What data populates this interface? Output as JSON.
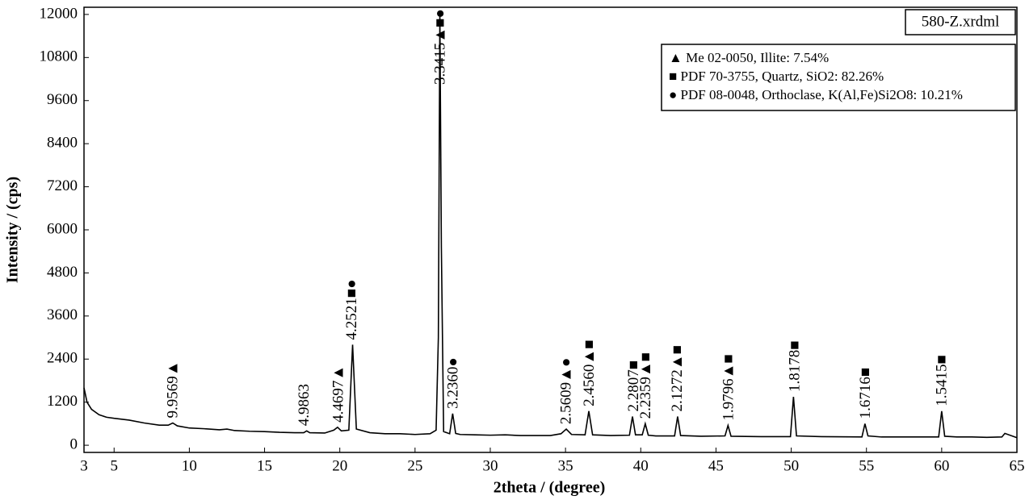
{
  "chart_data": {
    "type": "line",
    "file_label": "580-Z.xrdml",
    "x_label": "2theta / (degree)",
    "y_label": "Intensity / (cps)",
    "xlim": [
      3,
      65
    ],
    "xticks": [
      3,
      5,
      10,
      15,
      20,
      25,
      30,
      35,
      40,
      45,
      50,
      55,
      60,
      65
    ],
    "ylim": [
      -200,
      12200
    ],
    "yticks": [
      0,
      1200,
      2400,
      3600,
      4800,
      6000,
      7200,
      8400,
      9600,
      10800,
      12000
    ],
    "legend": [
      "▲ Me 02-0050, Illite: 7.54%",
      "■ PDF 70-3755, Quartz, SiO2: 82.26%",
      "● PDF 08-0048, Orthoclase, K(Al,Fe)Si2O8: 10.21%"
    ],
    "series": [
      {
        "color": "#000000",
        "x": [
          3,
          3.2,
          3.5,
          4,
          4.5,
          5,
          6,
          7,
          8,
          8.6,
          8.9,
          9.2,
          10,
          11,
          12,
          12.5,
          13,
          14,
          15,
          16,
          17,
          17.6,
          17.8,
          18,
          19,
          19.6,
          19.85,
          20.1,
          20.6,
          20.85,
          21.1,
          22,
          23,
          24,
          25,
          26,
          26.4,
          26.55,
          26.65,
          26.75,
          26.9,
          27.3,
          27.5,
          27.7,
          28,
          29,
          30,
          31,
          32,
          33,
          34,
          34.7,
          35.05,
          35.4,
          36.3,
          36.55,
          36.8,
          38,
          39.25,
          39.45,
          39.65,
          40.1,
          40.3,
          40.5,
          41,
          42.25,
          42.45,
          42.65,
          44,
          45.6,
          45.8,
          46,
          48,
          49.95,
          50.15,
          50.35,
          52,
          54.7,
          54.9,
          55.1,
          56,
          58,
          59.8,
          60,
          60.2,
          61,
          62,
          63,
          64,
          64.2,
          65
        ],
        "values": [
          1600,
          1200,
          1000,
          850,
          780,
          750,
          700,
          620,
          560,
          560,
          620,
          540,
          480,
          460,
          430,
          450,
          410,
          390,
          380,
          360,
          350,
          350,
          400,
          350,
          340,
          420,
          500,
          400,
          420,
          2800,
          450,
          350,
          320,
          320,
          300,
          320,
          420,
          3000,
          12000,
          5500,
          380,
          320,
          880,
          330,
          300,
          290,
          280,
          290,
          270,
          270,
          270,
          320,
          450,
          300,
          290,
          950,
          290,
          270,
          280,
          800,
          290,
          290,
          600,
          280,
          260,
          260,
          800,
          270,
          250,
          260,
          550,
          250,
          240,
          240,
          1350,
          260,
          240,
          230,
          600,
          260,
          230,
          230,
          230,
          950,
          250,
          230,
          230,
          220,
          230,
          330,
          210
        ]
      }
    ],
    "annotations": [
      {
        "x": 8.96,
        "text": "9.9569▲"
      },
      {
        "x": 17.7,
        "text": "4.9863"
      },
      {
        "x": 19.96,
        "text": "4.4697▲"
      },
      {
        "x": 20.87,
        "text": "4.2521■●"
      },
      {
        "x": 26.73,
        "text": "3.3415▲■●"
      },
      {
        "x": 27.6,
        "text": "3.2360●"
      },
      {
        "x": 35.1,
        "text": "2.5609▲●"
      },
      {
        "x": 36.65,
        "text": "2.4560▲■"
      },
      {
        "x": 39.6,
        "text": "2.2807■"
      },
      {
        "x": 40.4,
        "text": "2.2359▲■"
      },
      {
        "x": 42.5,
        "text": "2.1272▲■"
      },
      {
        "x": 45.9,
        "text": "1.9796▲■"
      },
      {
        "x": 50.3,
        "text": "1.8178■"
      },
      {
        "x": 55.0,
        "text": "1.6716■"
      },
      {
        "x": 60.06,
        "text": "1.5415■"
      }
    ]
  }
}
